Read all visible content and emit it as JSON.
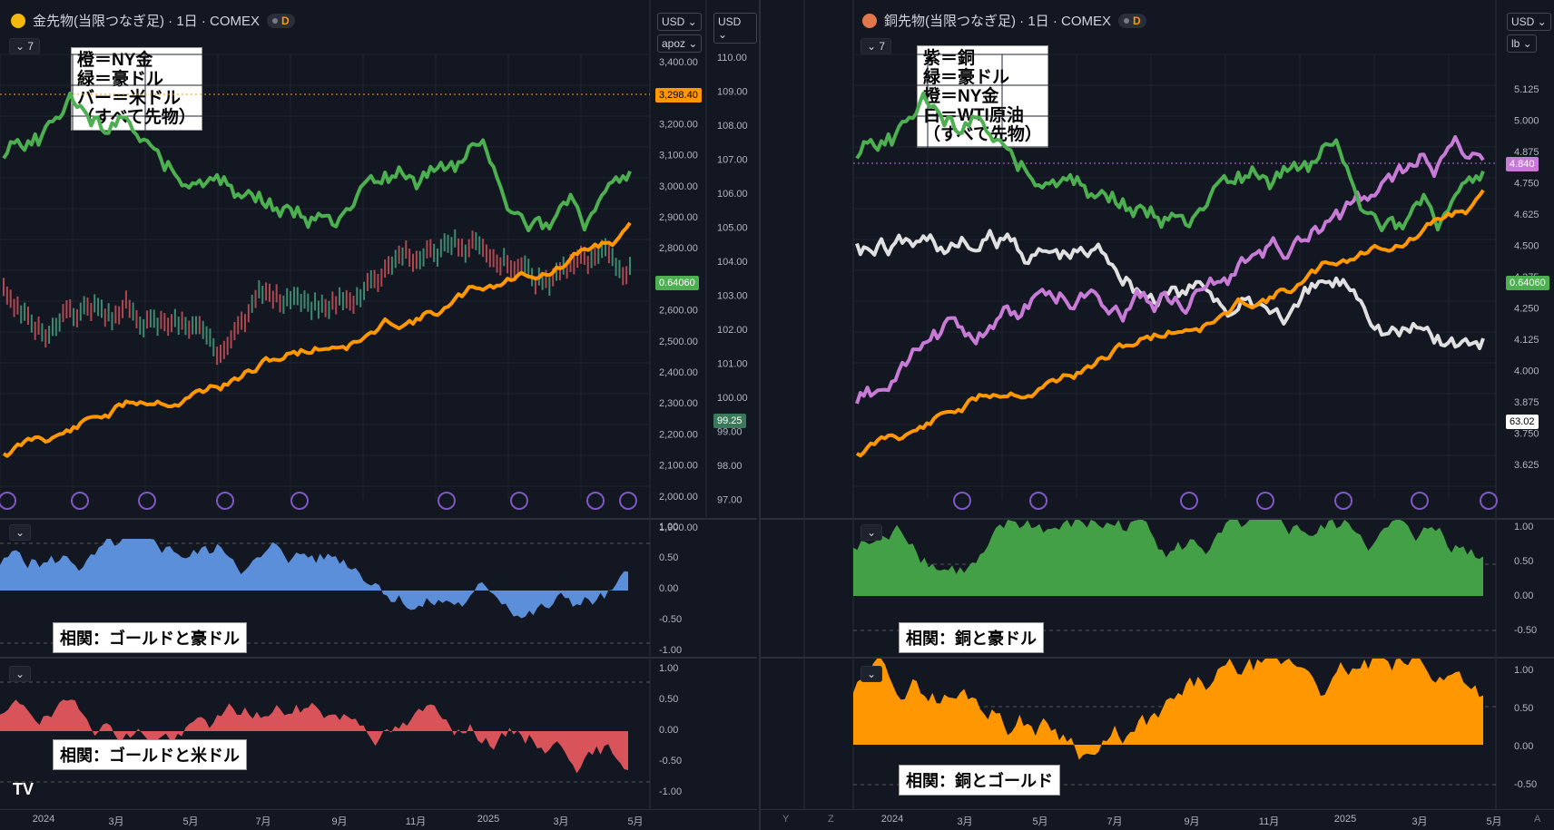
{
  "left": {
    "title": "金先物(当限つなぎ足) · 1日 · COMEX",
    "icon_color": "#f0b90b",
    "interval_badge": "D",
    "indicator_count": "7",
    "unit_currency": "USD",
    "unit_sub": "apoz",
    "unit_currency2": "USD",
    "legend_lines": [
      "橙＝NY金",
      "緑＝豪ドル",
      "バー＝米ドル",
      "（すべて先物）"
    ],
    "axis_gold": [
      "3,400.00",
      "3,300.00",
      "3,200.00",
      "3,100.00",
      "3,000.00",
      "2,900.00",
      "2,800.00",
      "2,700.00",
      "2,600.00",
      "2,500.00",
      "2,400.00",
      "2,300.00",
      "2,200.00",
      "2,100.00",
      "2,000.00",
      "1,900.00"
    ],
    "axis_usd": [
      "110.00",
      "109.00",
      "108.00",
      "107.00",
      "106.00",
      "105.00",
      "104.00",
      "103.00",
      "102.00",
      "101.00",
      "100.00",
      "99.00",
      "98.00",
      "97.00"
    ],
    "last_gold": "3,298.40",
    "last_aud": "0.64060",
    "last_usd": "99.25",
    "corr1_label": "相関：ゴールドと豪ドル",
    "corr2_label": "相関：ゴールドと米ドル",
    "corr_axis1": [
      "1.00",
      "0.50",
      "0.00",
      "-0.50",
      "-1.00"
    ],
    "corr_axis2": [
      "1.00",
      "0.50",
      "0.00",
      "-0.50",
      "-1.00"
    ],
    "x_labels": [
      "2024",
      "3月",
      "5月",
      "7月",
      "9月",
      "11月",
      "2025",
      "3月",
      "5月"
    ],
    "logo": "TV"
  },
  "right": {
    "title": "銅先物(当限つなぎ足) · 1日 · COMEX",
    "icon_color": "#e2774b",
    "interval_badge": "D",
    "indicator_count": "7",
    "unit_currency": "USD",
    "unit_sub": "lb",
    "legend_lines": [
      "紫＝銅",
      "緑＝豪ドル",
      "橙＝NY金",
      "白＝WTI原油",
      "（すべて先物）"
    ],
    "axis_copper": [
      "5.125",
      "5.000",
      "4.875",
      "4.750",
      "4.625",
      "4.500",
      "4.375",
      "4.250",
      "4.125",
      "4.000",
      "3.875",
      "3.750",
      "3.625"
    ],
    "last_copper": "4.840",
    "last_aud": "0.64060",
    "last_oil": "63.02",
    "corr1_label": "相関：銅と豪ドル",
    "corr2_label": "相関：銅とゴールド",
    "corr_axis1": [
      "1.00",
      "0.50",
      "0.00",
      "-0.50"
    ],
    "corr_axis2": [
      "1.00",
      "0.50",
      "0.00",
      "-0.50"
    ],
    "x_labels": [
      "2024",
      "3月",
      "5月",
      "7月",
      "9月",
      "11月",
      "2025",
      "3月",
      "5月"
    ],
    "footer_y": "Y",
    "footer_z": "Z",
    "footer_a": "A"
  },
  "colors": {
    "gold": "#ff9800",
    "aud": "#4caf50",
    "copper": "#c77ad6",
    "oil": "#e0e0e0",
    "corr_blue": "#5b8fd9",
    "corr_red": "#d9545a",
    "corr_green": "#43a047",
    "corr_orange": "#ff9800"
  }
}
